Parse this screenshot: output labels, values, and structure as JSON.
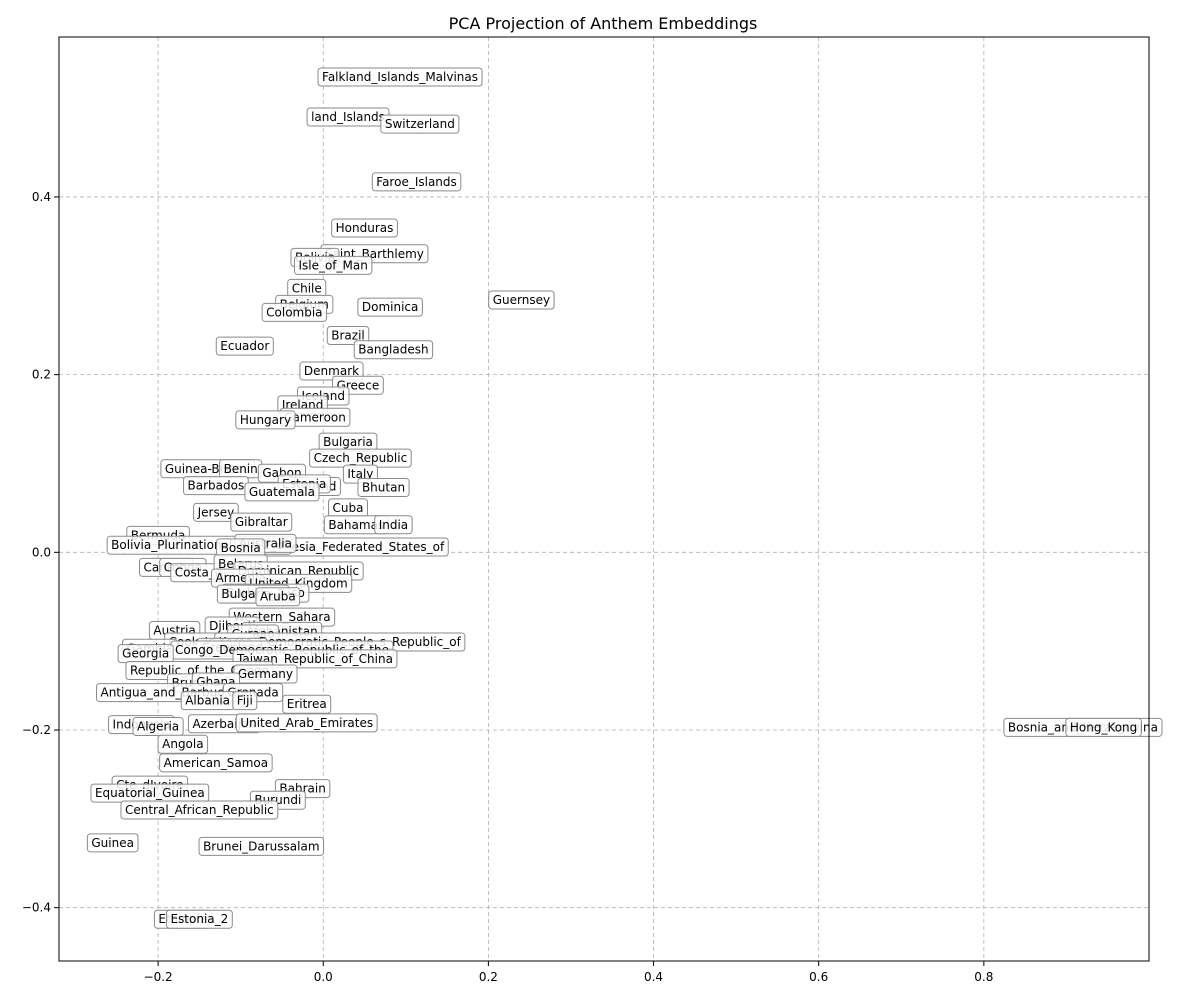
{
  "chart_data": {
    "type": "scatter",
    "title": "PCA Projection of Anthem Embeddings",
    "xlabel": "",
    "ylabel": "",
    "xlim": [
      -0.32,
      1.0
    ],
    "ylim": [
      -0.46,
      0.58
    ],
    "xticks": [
      -0.2,
      0.0,
      0.2,
      0.4,
      0.6,
      0.8
    ],
    "yticks": [
      -0.4,
      -0.2,
      0.0,
      0.2,
      0.4
    ],
    "xtick_labels": [
      "−0.2",
      "0.0",
      "0.2",
      "0.4",
      "0.6",
      "0.8"
    ],
    "ytick_labels": [
      "−0.4",
      "−0.2",
      "0.0",
      "0.2",
      "0.4"
    ],
    "grid": true,
    "point_color": "#d6e6f4",
    "points": [
      {
        "label": "Falkland_Islands_Malvinas",
        "x": 0.093,
        "y": 0.535
      },
      {
        "label": "land_Islands",
        "x": 0.03,
        "y": 0.49
      },
      {
        "label": "Switzerland",
        "x": 0.117,
        "y": 0.482
      },
      {
        "label": "Faroe_Islands",
        "x": 0.113,
        "y": 0.417
      },
      {
        "label": "Honduras",
        "x": 0.05,
        "y": 0.365
      },
      {
        "label": "Saint_Barthlemy",
        "x": 0.062,
        "y": 0.336
      },
      {
        "label": "Bolivia",
        "x": -0.01,
        "y": 0.332
      },
      {
        "label": "Isle_of_Man",
        "x": 0.012,
        "y": 0.323
      },
      {
        "label": "Guernsey",
        "x": 0.24,
        "y": 0.284
      },
      {
        "label": "Chile",
        "x": -0.02,
        "y": 0.297
      },
      {
        "label": "Belgium",
        "x": -0.023,
        "y": 0.279
      },
      {
        "label": "Dominica",
        "x": 0.081,
        "y": 0.276
      },
      {
        "label": "Colombia",
        "x": -0.035,
        "y": 0.27
      },
      {
        "label": "Brazil",
        "x": 0.03,
        "y": 0.244
      },
      {
        "label": "Ecuador",
        "x": -0.095,
        "y": 0.232
      },
      {
        "label": "Bangladesh",
        "x": 0.085,
        "y": 0.228
      },
      {
        "label": "Denmark",
        "x": 0.01,
        "y": 0.204
      },
      {
        "label": "Greece",
        "x": 0.042,
        "y": 0.188
      },
      {
        "label": "Iceland",
        "x": 0.0,
        "y": 0.176
      },
      {
        "label": "Ireland",
        "x": -0.025,
        "y": 0.166
      },
      {
        "label": "Cameroon",
        "x": -0.01,
        "y": 0.152
      },
      {
        "label": "Hungary",
        "x": -0.07,
        "y": 0.149
      },
      {
        "label": "Bulgaria",
        "x": 0.03,
        "y": 0.124
      },
      {
        "label": "Czech_Republic",
        "x": 0.045,
        "y": 0.106
      },
      {
        "label": "Italy",
        "x": 0.045,
        "y": 0.088
      },
      {
        "label": "Guinea-Bissau",
        "x": -0.14,
        "y": 0.094
      },
      {
        "label": "Benin",
        "x": -0.1,
        "y": 0.094
      },
      {
        "label": "Gabon",
        "x": -0.05,
        "y": 0.089
      },
      {
        "label": "Barbados",
        "x": -0.13,
        "y": 0.075
      },
      {
        "label": "Finland",
        "x": -0.01,
        "y": 0.074
      },
      {
        "label": "Estonia",
        "x": -0.023,
        "y": 0.077
      },
      {
        "label": "Bhutan",
        "x": 0.073,
        "y": 0.073
      },
      {
        "label": "Guatemala",
        "x": -0.05,
        "y": 0.068
      },
      {
        "label": "Cuba",
        "x": 0.03,
        "y": 0.05
      },
      {
        "label": "Jersey",
        "x": -0.13,
        "y": 0.045
      },
      {
        "label": "Gibraltar",
        "x": -0.075,
        "y": 0.034
      },
      {
        "label": "Bahamas",
        "x": 0.04,
        "y": 0.031
      },
      {
        "label": "India",
        "x": 0.085,
        "y": 0.031
      },
      {
        "label": "Bermuda",
        "x": -0.2,
        "y": 0.019
      },
      {
        "label": "Micronesia_Federated_States_of",
        "x": 0.03,
        "y": 0.006
      },
      {
        "label": "Bolivia_Plurinational_State_of",
        "x": -0.15,
        "y": 0.008
      },
      {
        "label": "Australia",
        "x": -0.07,
        "y": 0.01
      },
      {
        "label": "Bosnia",
        "x": -0.1,
        "y": 0.005
      },
      {
        "label": "Canada",
        "x": -0.19,
        "y": -0.017
      },
      {
        "label": "Congo",
        "x": -0.17,
        "y": -0.017
      },
      {
        "label": "Costa_Rica",
        "x": -0.14,
        "y": -0.023
      },
      {
        "label": "Belarus",
        "x": -0.1,
        "y": -0.013
      },
      {
        "label": "Dominican_Republic",
        "x": -0.03,
        "y": -0.021
      },
      {
        "label": "Armenia",
        "x": -0.1,
        "y": -0.029
      },
      {
        "label": "United_Kingdom",
        "x": -0.03,
        "y": -0.035
      },
      {
        "label": "Burkina_Faso",
        "x": -0.07,
        "y": -0.046
      },
      {
        "label": "Bulgaria_2",
        "x": -0.085,
        "y": -0.047
      },
      {
        "label": "Aruba",
        "x": -0.055,
        "y": -0.05
      },
      {
        "label": "Western_Sahara",
        "x": -0.05,
        "y": -0.073
      },
      {
        "label": "Djibouti",
        "x": -0.11,
        "y": -0.083
      },
      {
        "label": "Afghanistan",
        "x": -0.05,
        "y": -0.089
      },
      {
        "label": "Austria",
        "x": -0.18,
        "y": -0.088
      },
      {
        "label": "Curaao",
        "x": -0.085,
        "y": -0.092
      },
      {
        "label": "Cook_Islands",
        "x": -0.14,
        "y": -0.101
      },
      {
        "label": "Korea_Democratic_People_s_Republic_of",
        "x": 0.02,
        "y": -0.101
      },
      {
        "label": "Gambia",
        "x": -0.21,
        "y": -0.108
      },
      {
        "label": "Greenland",
        "x": -0.11,
        "y": -0.107
      },
      {
        "label": "Congo_Democratic_Republic_of_the",
        "x": -0.05,
        "y": -0.11
      },
      {
        "label": "Georgia",
        "x": -0.215,
        "y": -0.114
      },
      {
        "label": "Taiwan_Republic_of_China",
        "x": -0.01,
        "y": -0.12
      },
      {
        "label": "Republic_of_the_Congo",
        "x": -0.15,
        "y": -0.133
      },
      {
        "label": "Germany",
        "x": -0.07,
        "y": -0.137
      },
      {
        "label": "Brunei",
        "x": -0.16,
        "y": -0.147
      },
      {
        "label": "Ghana",
        "x": -0.13,
        "y": -0.146
      },
      {
        "label": "Antigua_and_Barbuda",
        "x": -0.19,
        "y": -0.158
      },
      {
        "label": "Grenada",
        "x": -0.085,
        "y": -0.158
      },
      {
        "label": "Albania",
        "x": -0.14,
        "y": -0.167
      },
      {
        "label": "Fiji",
        "x": -0.095,
        "y": -0.167
      },
      {
        "label": "Eritrea",
        "x": -0.02,
        "y": -0.171
      },
      {
        "label": "Indonesia",
        "x": -0.22,
        "y": -0.194
      },
      {
        "label": "Algeria",
        "x": -0.2,
        "y": -0.196
      },
      {
        "label": "Azerbaijan",
        "x": -0.12,
        "y": -0.193
      },
      {
        "label": "United_Arab_Emirates",
        "x": -0.02,
        "y": -0.192
      },
      {
        "label": "Bosnia_and_Herzegovina",
        "x": 0.92,
        "y": -0.197
      },
      {
        "label": "Hong_Kong",
        "x": 0.945,
        "y": -0.197
      },
      {
        "label": "Angola",
        "x": -0.17,
        "y": -0.216
      },
      {
        "label": "American_Samoa",
        "x": -0.13,
        "y": -0.237
      },
      {
        "label": "Bahrain",
        "x": -0.025,
        "y": -0.266
      },
      {
        "label": "Cte_dIvoire",
        "x": -0.21,
        "y": -0.262
      },
      {
        "label": "Equatorial_Guinea",
        "x": -0.21,
        "y": -0.271
      },
      {
        "label": "Burundi",
        "x": -0.055,
        "y": -0.279
      },
      {
        "label": "Central_African_Republic",
        "x": -0.15,
        "y": -0.29
      },
      {
        "label": "Guinea",
        "x": -0.255,
        "y": -0.327
      },
      {
        "label": "Brunei_Darussalam",
        "x": -0.075,
        "y": -0.331
      },
      {
        "label": "Ethiopia",
        "x": -0.17,
        "y": -0.413
      },
      {
        "label": "Estonia_2",
        "x": -0.15,
        "y": -0.413
      }
    ]
  }
}
